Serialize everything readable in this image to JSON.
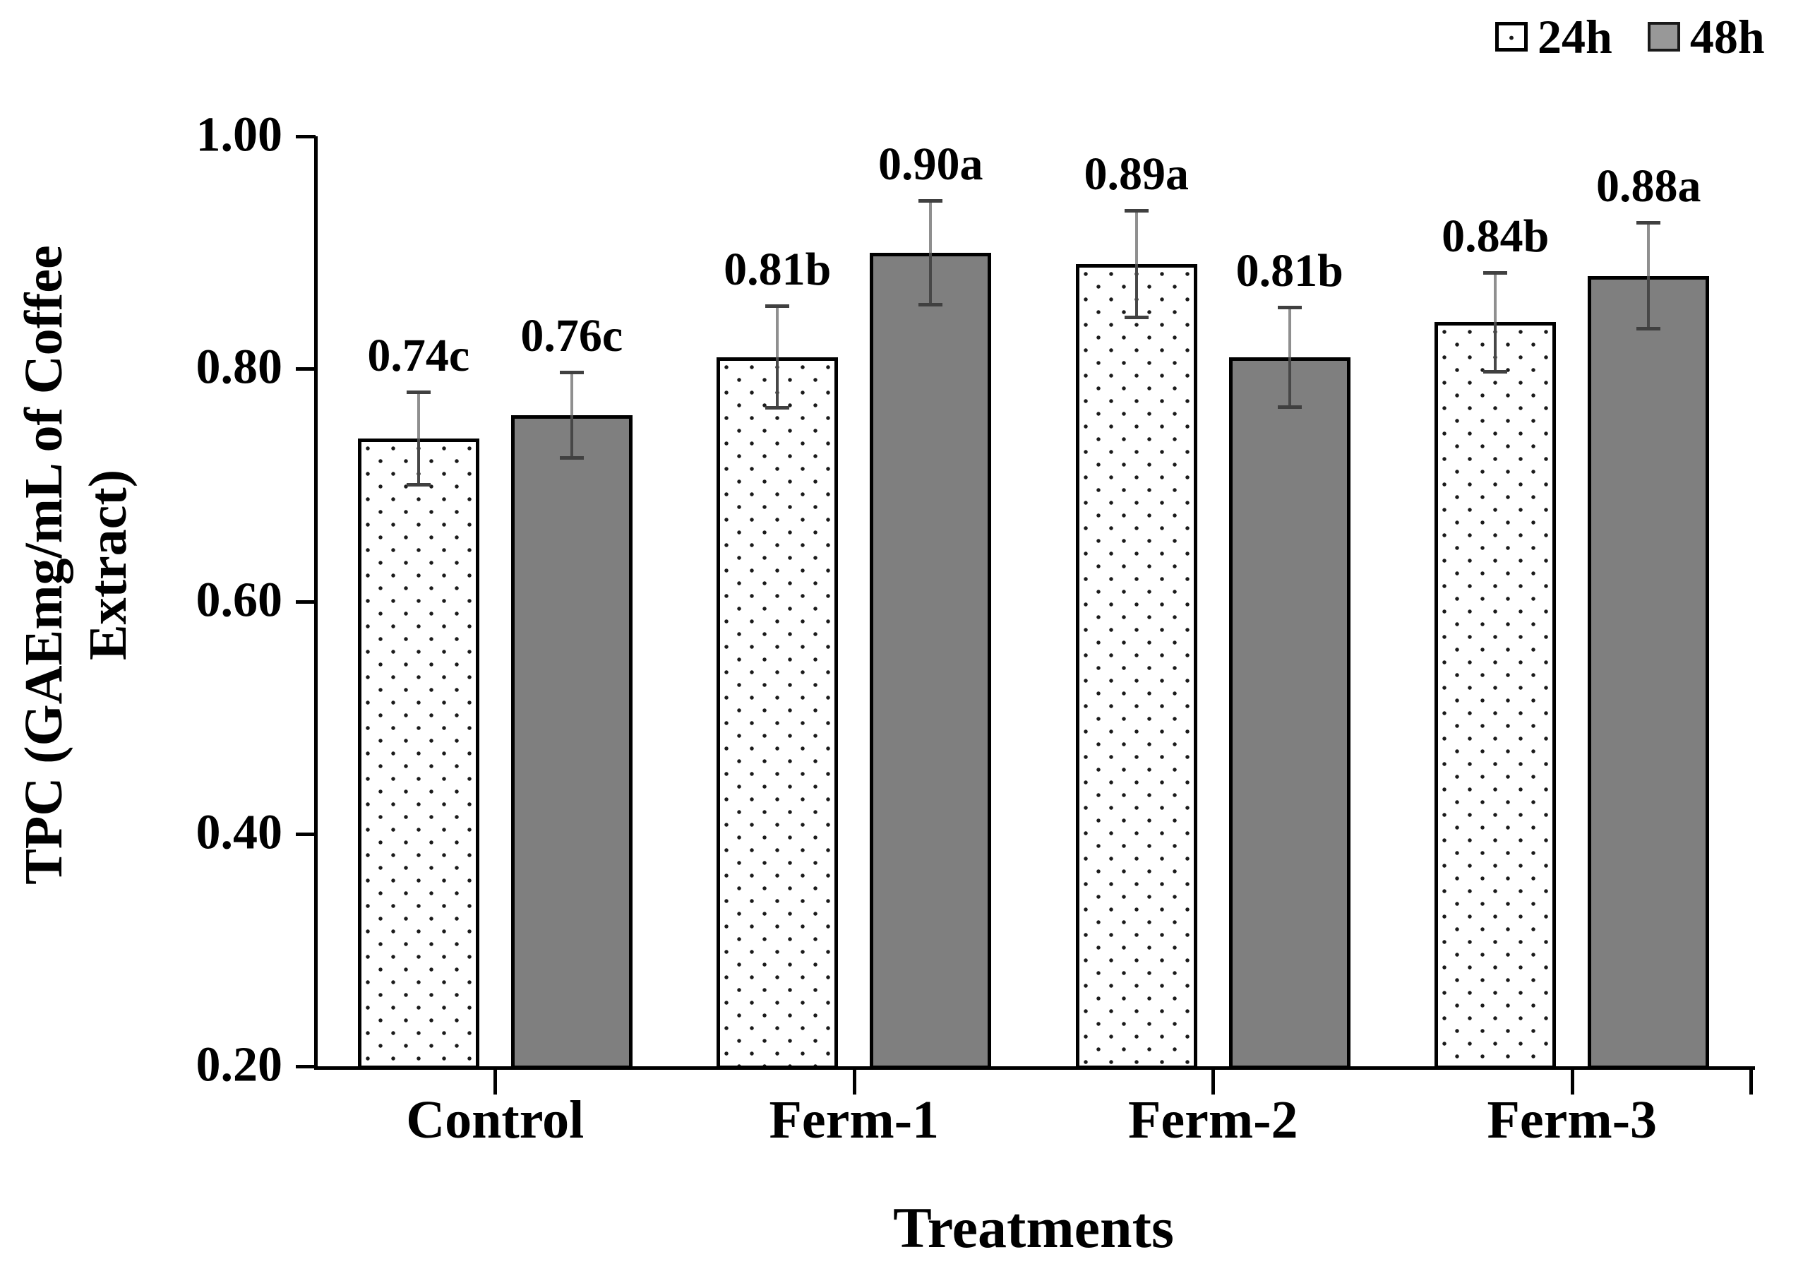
{
  "figure": {
    "background": "#ffffff"
  },
  "legend": {
    "items": [
      {
        "label": "24h",
        "swatch": "dotted-white"
      },
      {
        "label": "48h",
        "swatch": "solid-gray"
      }
    ]
  },
  "axes": {
    "y": {
      "title": "TPC (GAEmg/mL of Coffee Extract)",
      "title_lines": [
        "TPC (GAEmg/mL of Coffee",
        "Extract)"
      ],
      "tick_labels": [
        "1.00",
        "0.80",
        "0.60",
        "0.40",
        "0.20"
      ]
    },
    "x": {
      "title": "Treatments",
      "tick_labels": [
        "Control",
        "Ferm-1",
        "Ferm-2",
        "Ferm-3"
      ]
    }
  },
  "chart_data": {
    "type": "bar",
    "categories": [
      "Control",
      "Ferm-1",
      "Ferm-2",
      "Ferm-3"
    ],
    "series": [
      {
        "name": "24h",
        "style": "dotted-white",
        "values": [
          0.74,
          0.81,
          0.89,
          0.84
        ],
        "errors": [
          0.04,
          0.044,
          0.046,
          0.043
        ],
        "point_labels": [
          "0.74c",
          "0.81b",
          "0.89a",
          "0.84b"
        ]
      },
      {
        "name": "48h",
        "style": "solid-gray",
        "values": [
          0.76,
          0.9,
          0.81,
          0.88
        ],
        "errors": [
          0.037,
          0.045,
          0.043,
          0.046
        ],
        "point_labels": [
          "0.76c",
          "0.90a",
          "0.81b",
          "0.88a"
        ]
      }
    ],
    "xlabel": "Treatments",
    "ylabel": "TPC (GAEmg/mL of Coffee Extract)",
    "ylim": [
      0.2,
      1.0
    ],
    "ytick_step": 0.2,
    "grid": false,
    "legend_position": "top-right",
    "error_bars": true
  },
  "colors": {
    "bar_24h_fill": "#ffffff",
    "bar_24h_dots": "#1a1a1a",
    "bar_48h_fill": "#7f7f7f",
    "bar_border": "#000000",
    "legend_48h_fill": "#989898",
    "error_stem": "#8f8f8f",
    "error_stem_inner": "#474747",
    "error_cap": "#404040",
    "axis": "#000000",
    "text": "#000000"
  }
}
